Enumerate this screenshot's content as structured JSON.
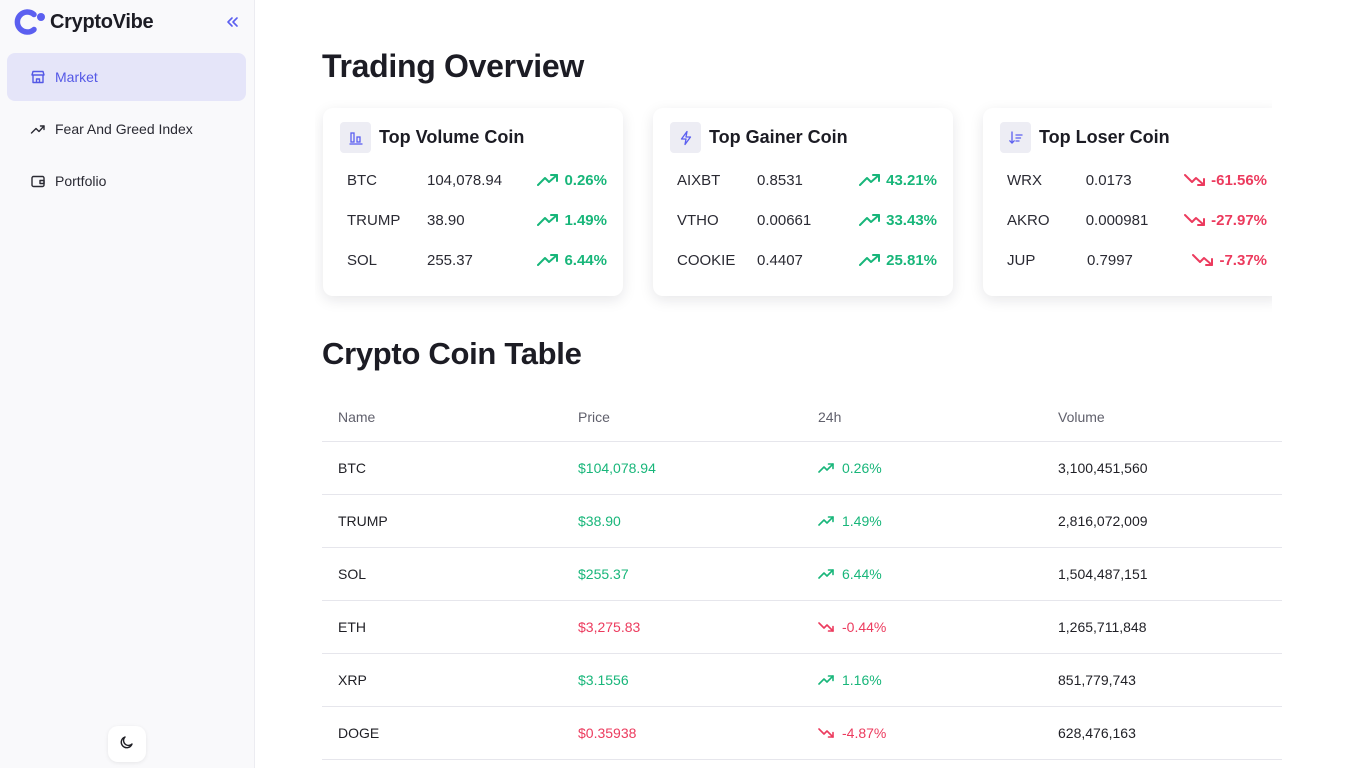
{
  "app": {
    "name": "CryptoVibe",
    "accent": "#5b5ff0"
  },
  "sidebar": {
    "items": [
      {
        "label": "Market",
        "icon": "store-icon",
        "active": true
      },
      {
        "label": "Fear And Greed Index",
        "icon": "trend-icon",
        "active": false
      },
      {
        "label": "Portfolio",
        "icon": "wallet-icon",
        "active": false
      }
    ],
    "theme_icon": "moon-icon"
  },
  "overview": {
    "title": "Trading Overview",
    "cards": [
      {
        "title": "Top Volume Coin",
        "icon": "bar-chart-icon",
        "rows": [
          {
            "symbol": "BTC",
            "price": "104,078.94",
            "change": "0.26%",
            "dir": "up"
          },
          {
            "symbol": "TRUMP",
            "price": "38.90",
            "change": "1.49%",
            "dir": "up"
          },
          {
            "symbol": "SOL",
            "price": "255.37",
            "change": "6.44%",
            "dir": "up"
          }
        ]
      },
      {
        "title": "Top Gainer Coin",
        "icon": "lightning-icon",
        "rows": [
          {
            "symbol": "AIXBT",
            "price": "0.8531",
            "change": "43.21%",
            "dir": "up"
          },
          {
            "symbol": "VTHO",
            "price": "0.00661",
            "change": "33.43%",
            "dir": "up"
          },
          {
            "symbol": "COOKIE",
            "price": "0.4407",
            "change": "25.81%",
            "dir": "up"
          }
        ]
      },
      {
        "title": "Top Loser Coin",
        "icon": "sort-down-icon",
        "rows": [
          {
            "symbol": "WRX",
            "price": "0.0173",
            "change": "-61.56%",
            "dir": "down"
          },
          {
            "symbol": "AKRO",
            "price": "0.000981",
            "change": "-27.97%",
            "dir": "down"
          },
          {
            "symbol": "JUP",
            "price": "0.7997",
            "change": "-7.37%",
            "dir": "down"
          }
        ]
      }
    ]
  },
  "table": {
    "title": "Crypto Coin Table",
    "columns": [
      "Name",
      "Price",
      "24h",
      "Volume"
    ],
    "rows": [
      {
        "name": "BTC",
        "price": "$104,078.94",
        "change": "0.26%",
        "dir": "up",
        "volume": "3,100,451,560"
      },
      {
        "name": "TRUMP",
        "price": "$38.90",
        "change": "1.49%",
        "dir": "up",
        "volume": "2,816,072,009"
      },
      {
        "name": "SOL",
        "price": "$255.37",
        "change": "6.44%",
        "dir": "up",
        "volume": "1,504,487,151"
      },
      {
        "name": "ETH",
        "price": "$3,275.83",
        "change": "-0.44%",
        "dir": "down",
        "volume": "1,265,711,848"
      },
      {
        "name": "XRP",
        "price": "$3.1556",
        "change": "1.16%",
        "dir": "up",
        "volume": "851,779,743"
      },
      {
        "name": "DOGE",
        "price": "$0.35938",
        "change": "-4.87%",
        "dir": "down",
        "volume": "628,476,163"
      }
    ]
  },
  "colors": {
    "up": "#18b67a",
    "down": "#ec3b5e",
    "active_bg": "#e5e5f9"
  }
}
